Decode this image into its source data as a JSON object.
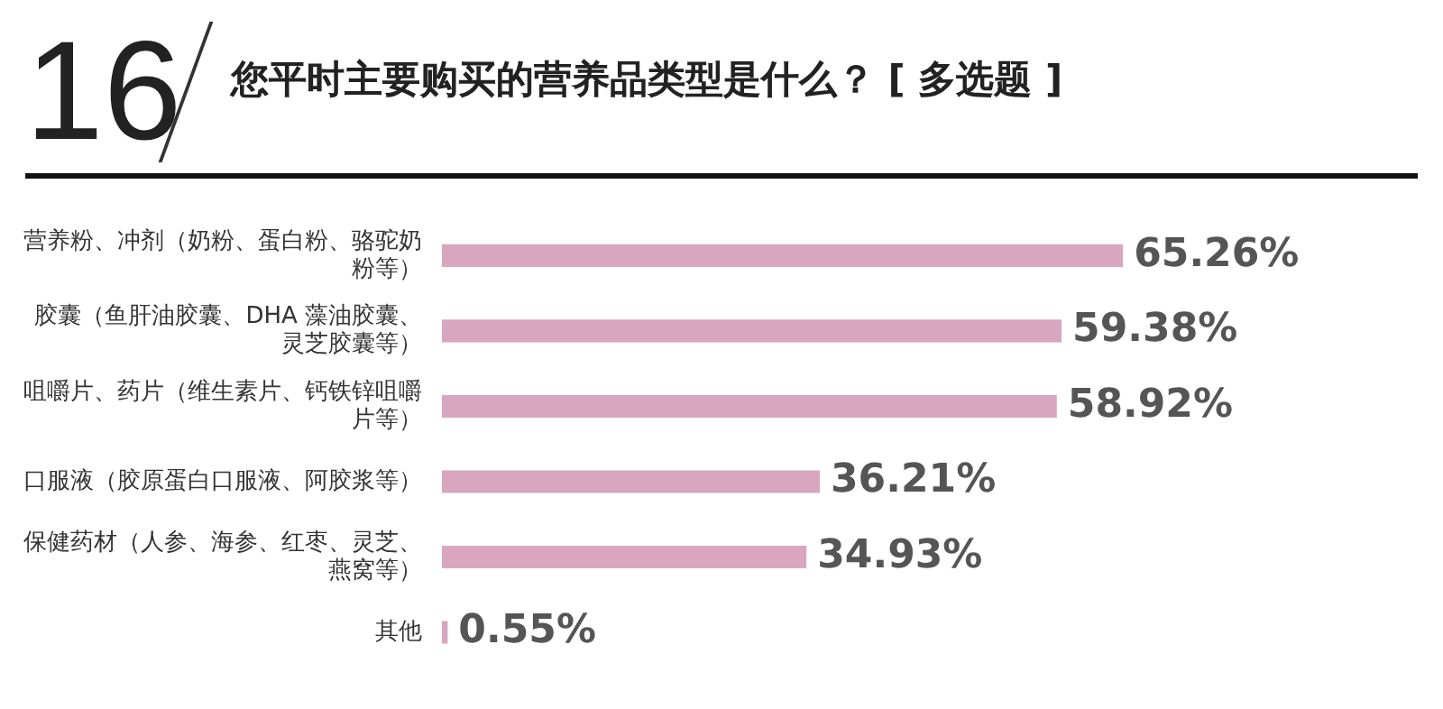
{
  "chart_data": {
    "type": "bar",
    "orientation": "horizontal",
    "title": "您平时主要购买的营养品类型是什么？ [ 多选题 ]",
    "annotations": [
      "16"
    ],
    "categories": [
      "营养粉、冲剂（奶粉、蛋白粉、骆驼奶粉等）",
      "胶囊（鱼肝油胶囊、DHA 藻油胶囊、灵芝胶囊等）",
      "咀嚼片、药片（维生素片、钙铁锌咀嚼片等）",
      "口服液（胶原蛋白口服液、阿胶浆等）",
      "保健药材（人参、海参、红枣、灵芝、燕窝等）",
      "其他"
    ],
    "values": [
      65.26,
      59.38,
      58.92,
      36.21,
      34.93,
      0.55
    ],
    "value_labels": [
      "65.26%",
      "59.38%",
      "58.92%",
      "36.21%",
      "34.93%",
      "0.55%"
    ],
    "color": "#d9a6bf",
    "tick_labels": "y",
    "legend": false
  }
}
